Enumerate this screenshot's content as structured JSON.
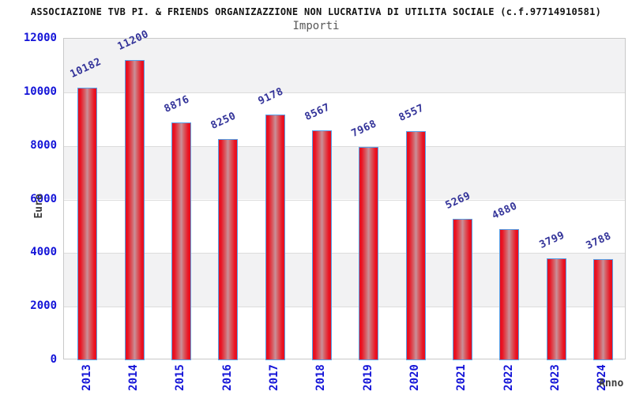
{
  "chart": {
    "title": "ASSOCIAZIONE TVB PI. & FRIENDS ORGANIZAZZIONE NON LUCRATIVA DI UTILITA SOCIALE (c.f.97714910581)",
    "subtitle": "Importi",
    "y_axis_label": "Euro",
    "x_axis_label": "Anno"
  },
  "chart_data": {
    "type": "bar",
    "title": "Importi",
    "categories": [
      "2013",
      "2014",
      "2015",
      "2016",
      "2017",
      "2018",
      "2019",
      "2020",
      "2021",
      "2022",
      "2023",
      "2024"
    ],
    "values": [
      10182,
      11200,
      8876,
      8250,
      9178,
      8567,
      7968,
      8557,
      5269,
      4880,
      3799,
      3788
    ],
    "xlabel": "Anno",
    "ylabel": "Euro",
    "ylim": [
      0,
      12000
    ],
    "y_ticks": [
      0,
      2000,
      4000,
      6000,
      8000,
      10000,
      12000
    ],
    "grid": "horizontal-bands-alternating",
    "legend": "none",
    "colors": {
      "bar_fill_edge": "#ea1322",
      "bar_fill_center": "#c9909a",
      "bar_border": "#56a0e8",
      "value_label": "#333399",
      "tick_label": "#1414d8",
      "band_gray": "#f2f2f3",
      "gridline": "#dcdcdc",
      "plot_border": "#c9c9c9",
      "title": "#141414",
      "subtitle": "#585858",
      "axis_title": "#3c3c3c"
    }
  }
}
